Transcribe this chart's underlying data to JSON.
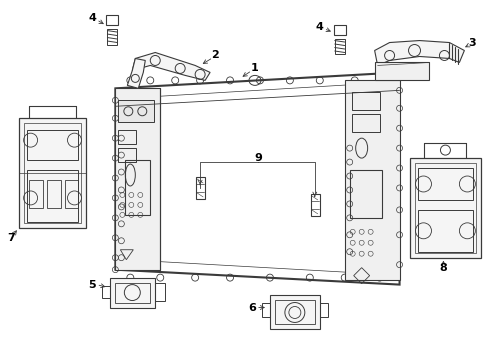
{
  "background_color": "#ffffff",
  "line_color": "#3a3a3a",
  "label_color": "#000000",
  "figsize": [
    4.9,
    3.6
  ],
  "dpi": 100
}
